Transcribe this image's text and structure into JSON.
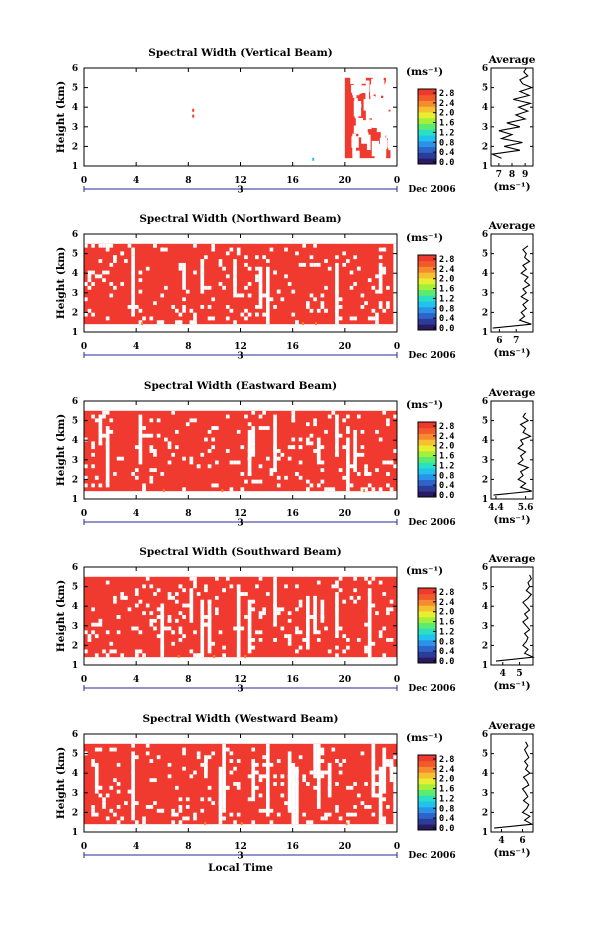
{
  "chart_data": [
    {
      "type": "heatmap",
      "title": "Spectral Width (Vertical Beam)",
      "ylabel": "Height (km)",
      "unit_label": "(ms⁻¹)",
      "date_label": "Dec 2006",
      "day_marker": "3",
      "x_ticks": [
        "0",
        "4",
        "8",
        "12",
        "16",
        "20",
        "0"
      ],
      "y_ticks": [
        "1",
        "2",
        "3",
        "4",
        "5",
        "6"
      ],
      "xlim": [
        0,
        24
      ],
      "ylim": [
        1,
        6
      ],
      "colorbar_ticks": [
        "2.8",
        "2.4",
        "2.0",
        "1.6",
        "1.2",
        "0.8",
        "0.4",
        "0.0"
      ],
      "colorbar_range": [
        0.0,
        2.8
      ],
      "data_coverage": {
        "rows_km": [
          1.4,
          5.5
        ],
        "filled_time_spans_hours": [
          [
            20.0,
            23.5
          ]
        ],
        "sparse_points": [
          [
            8.3,
            3.8
          ],
          [
            8.3,
            3.5
          ],
          [
            17.5,
            1.3
          ]
        ],
        "dominant_value": 2.8
      },
      "average_profile": {
        "title": "Average",
        "xlabel": "(ms⁻¹)",
        "x_ticks": [
          "7",
          "8",
          "9"
        ],
        "xlim": [
          6.4,
          9.6
        ],
        "y_ticks": [
          "1",
          "2",
          "3",
          "4",
          "5",
          "6"
        ],
        "heights_km": [
          1.4,
          1.6,
          1.8,
          2.0,
          2.2,
          2.4,
          2.6,
          2.8,
          3.0,
          3.2,
          3.4,
          3.6,
          3.8,
          4.0,
          4.2,
          4.4,
          4.6,
          4.8,
          5.0,
          5.2,
          5.4,
          5.6,
          5.8,
          6.0
        ],
        "values": [
          7.2,
          6.5,
          8.6,
          7.4,
          8.8,
          7.2,
          8.0,
          7.0,
          8.6,
          7.6,
          9.0,
          8.3,
          9.2,
          8.5,
          9.4,
          8.1,
          9.3,
          8.6,
          9.5,
          8.8,
          8.6,
          9.2,
          8.9,
          9.1
        ]
      }
    },
    {
      "type": "heatmap",
      "title": "Spectral Width (Northward Beam)",
      "ylabel": "Height (km)",
      "unit_label": "(ms⁻¹)",
      "date_label": "Dec 2006",
      "day_marker": "3",
      "x_ticks": [
        "0",
        "4",
        "8",
        "12",
        "16",
        "20",
        "0"
      ],
      "y_ticks": [
        "1",
        "2",
        "3",
        "4",
        "5",
        "6"
      ],
      "xlim": [
        0,
        24
      ],
      "ylim": [
        1,
        6
      ],
      "colorbar_ticks": [
        "2.8",
        "2.4",
        "2.0",
        "1.6",
        "1.2",
        "0.8",
        "0.4",
        "0.0"
      ],
      "colorbar_range": [
        0.0,
        2.8
      ],
      "data_coverage": {
        "rows_km": [
          1.4,
          5.5
        ],
        "filled_time_spans_hours": [
          [
            0.0,
            24.0
          ]
        ],
        "dominant_value": 2.8
      },
      "average_profile": {
        "title": "Average",
        "xlabel": "(ms⁻¹)",
        "x_ticks": [
          "6",
          "7"
        ],
        "xlim": [
          5.5,
          8.0
        ],
        "y_ticks": [
          "1",
          "2",
          "3",
          "4",
          "5",
          "6"
        ],
        "heights_km": [
          1.2,
          1.4,
          1.6,
          1.8,
          2.0,
          2.2,
          2.4,
          2.6,
          2.8,
          3.0,
          3.2,
          3.4,
          3.6,
          3.8,
          4.0,
          4.2,
          4.4,
          4.6,
          4.8,
          5.0,
          5.2,
          5.4
        ],
        "values": [
          5.6,
          7.9,
          7.2,
          7.5,
          7.3,
          7.6,
          7.4,
          7.7,
          7.3,
          7.6,
          7.4,
          7.8,
          7.5,
          7.7,
          7.3,
          7.6,
          7.4,
          7.8,
          7.5,
          7.6,
          7.4,
          7.7
        ]
      }
    },
    {
      "type": "heatmap",
      "title": "Spectral Width (Eastward Beam)",
      "ylabel": "Height (km)",
      "unit_label": "(ms⁻¹)",
      "date_label": "Dec 2006",
      "day_marker": "3",
      "x_ticks": [
        "0",
        "4",
        "8",
        "12",
        "16",
        "20",
        "0"
      ],
      "y_ticks": [
        "1",
        "2",
        "3",
        "4",
        "5",
        "6"
      ],
      "xlim": [
        0,
        24
      ],
      "ylim": [
        1,
        6
      ],
      "colorbar_ticks": [
        "2.8",
        "2.4",
        "2.0",
        "1.6",
        "1.2",
        "0.8",
        "0.4",
        "0.0"
      ],
      "colorbar_range": [
        0.0,
        2.8
      ],
      "data_coverage": {
        "rows_km": [
          1.4,
          5.5
        ],
        "filled_time_spans_hours": [
          [
            0.0,
            24.0
          ]
        ],
        "dominant_value": 2.8
      },
      "average_profile": {
        "title": "Average",
        "xlabel": "(ms⁻¹)",
        "x_ticks": [
          "4.4",
          "5.6"
        ],
        "xlim": [
          4.2,
          5.9
        ],
        "y_ticks": [
          "1",
          "2",
          "3",
          "4",
          "5",
          "6"
        ],
        "heights_km": [
          1.2,
          1.4,
          1.6,
          1.8,
          2.0,
          2.2,
          2.4,
          2.6,
          2.8,
          3.0,
          3.2,
          3.4,
          3.6,
          3.8,
          4.0,
          4.2,
          4.4,
          4.6,
          4.8,
          5.0,
          5.2,
          5.4
        ],
        "values": [
          4.3,
          5.85,
          5.4,
          5.6,
          5.3,
          5.5,
          5.4,
          5.7,
          5.3,
          5.5,
          5.4,
          5.6,
          5.3,
          5.5,
          5.4,
          5.8,
          5.5,
          5.6,
          5.4,
          5.7,
          5.5,
          5.6
        ]
      }
    },
    {
      "type": "heatmap",
      "title": "Spectral Width (Southward Beam)",
      "ylabel": "Height (km)",
      "unit_label": "(ms⁻¹)",
      "date_label": "Dec 2006",
      "day_marker": "3",
      "x_ticks": [
        "0",
        "4",
        "8",
        "12",
        "16",
        "20",
        "0"
      ],
      "y_ticks": [
        "1",
        "2",
        "3",
        "4",
        "5",
        "6"
      ],
      "xlim": [
        0,
        24
      ],
      "ylim": [
        1,
        6
      ],
      "colorbar_ticks": [
        "2.8",
        "2.4",
        "2.0",
        "1.6",
        "1.2",
        "0.8",
        "0.4",
        "0.0"
      ],
      "colorbar_range": [
        0.0,
        2.8
      ],
      "data_coverage": {
        "rows_km": [
          1.4,
          5.5
        ],
        "filled_time_spans_hours": [
          [
            0.0,
            24.0
          ]
        ],
        "dominant_value": 2.8
      },
      "average_profile": {
        "title": "Average",
        "xlabel": "(ms⁻¹)",
        "x_ticks": [
          "4",
          "5"
        ],
        "xlim": [
          3.3,
          5.8
        ],
        "y_ticks": [
          "1",
          "2",
          "3",
          "4",
          "5",
          "6"
        ],
        "heights_km": [
          1.2,
          1.4,
          1.6,
          1.8,
          2.0,
          2.2,
          2.4,
          2.6,
          2.8,
          3.0,
          3.2,
          3.4,
          3.6,
          3.8,
          4.0,
          4.2,
          4.4,
          4.6,
          4.8,
          5.0,
          5.2,
          5.4,
          5.6
        ],
        "values": [
          3.6,
          5.8,
          5.3,
          5.5,
          5.2,
          5.4,
          5.5,
          5.3,
          5.6,
          5.4,
          5.2,
          5.5,
          5.3,
          5.6,
          5.4,
          5.2,
          5.5,
          5.7,
          5.4,
          5.6,
          5.5,
          5.7,
          5.6
        ]
      }
    },
    {
      "type": "heatmap",
      "title": "Spectral Width (Westward Beam)",
      "ylabel": "Height (km)",
      "xlabel": "Local Time",
      "unit_label": "(ms⁻¹)",
      "date_label": "Dec 2006",
      "day_marker": "3",
      "x_ticks": [
        "0",
        "4",
        "8",
        "12",
        "16",
        "20",
        "0"
      ],
      "y_ticks": [
        "1",
        "2",
        "3",
        "4",
        "5",
        "6"
      ],
      "xlim": [
        0,
        24
      ],
      "ylim": [
        1,
        6
      ],
      "colorbar_ticks": [
        "2.8",
        "2.4",
        "2.0",
        "1.6",
        "1.2",
        "0.8",
        "0.4",
        "0.0"
      ],
      "colorbar_range": [
        0.0,
        2.8
      ],
      "data_coverage": {
        "rows_km": [
          1.4,
          5.5
        ],
        "filled_time_spans_hours": [
          [
            0.0,
            24.0
          ]
        ],
        "dominant_value": 2.8
      },
      "average_profile": {
        "title": "Average",
        "xlabel": "(ms⁻¹)",
        "x_ticks": [
          "4",
          "6"
        ],
        "xlim": [
          3.0,
          7.0
        ],
        "y_ticks": [
          "1",
          "2",
          "3",
          "4",
          "5",
          "6"
        ],
        "heights_km": [
          1.2,
          1.4,
          1.6,
          1.8,
          2.0,
          2.2,
          2.4,
          2.6,
          2.8,
          3.0,
          3.2,
          3.4,
          3.6,
          3.8,
          4.0,
          4.2,
          4.4,
          4.6,
          4.8,
          5.0,
          5.2,
          5.4,
          5.6
        ],
        "values": [
          3.3,
          6.9,
          6.2,
          6.7,
          6.0,
          6.4,
          6.6,
          6.1,
          6.5,
          6.3,
          6.0,
          6.6,
          6.4,
          6.1,
          6.7,
          6.3,
          6.5,
          6.2,
          6.6,
          6.4,
          6.2,
          6.5,
          6.3
        ]
      }
    }
  ],
  "colors": {
    "dominant": "#f03a30",
    "colorscale": [
      "#2a1a60",
      "#2c3c9a",
      "#2e63c8",
      "#2a92e8",
      "#22c2ee",
      "#2ae0c2",
      "#5aeb70",
      "#a4ef3a",
      "#e8ee30",
      "#f6c030",
      "#f68a2e",
      "#f25a2c",
      "#ee3a2e"
    ]
  }
}
